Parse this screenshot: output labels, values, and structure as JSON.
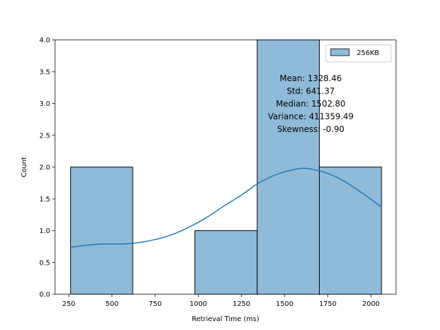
{
  "chart_data": {
    "type": "bar",
    "title": "",
    "xlabel": "Retrieval Time (ms)",
    "ylabel": "Count",
    "xlim": [
      170,
      2145
    ],
    "ylim": [
      0,
      4.0
    ],
    "xticks": [
      250,
      500,
      750,
      1000,
      1250,
      1500,
      1750,
      2000
    ],
    "yticks": [
      0.0,
      0.5,
      1.0,
      1.5,
      2.0,
      2.5,
      3.0,
      3.5,
      4.0
    ],
    "bins": [
      {
        "x0": 260,
        "x1": 620,
        "count": 2
      },
      {
        "x0": 620,
        "x1": 980,
        "count": 0
      },
      {
        "x0": 980,
        "x1": 1341,
        "count": 1
      },
      {
        "x0": 1341,
        "x1": 1701,
        "count": 4
      },
      {
        "x0": 1701,
        "x1": 2061,
        "count": 2
      }
    ],
    "kde": {
      "x": [
        260,
        350,
        450,
        550,
        650,
        750,
        850,
        950,
        1050,
        1150,
        1250,
        1350,
        1450,
        1550,
        1600,
        1650,
        1750,
        1850,
        1950,
        2061
      ],
      "y": [
        0.74,
        0.77,
        0.79,
        0.79,
        0.81,
        0.86,
        0.94,
        1.06,
        1.21,
        1.39,
        1.56,
        1.75,
        1.88,
        1.96,
        1.98,
        1.97,
        1.9,
        1.77,
        1.59,
        1.37
      ]
    },
    "series": [
      {
        "name": "256KB",
        "color": "#1f77b4"
      }
    ],
    "legend": "top-right",
    "grid": false,
    "annotation": [
      "Mean: 1328.46",
      "Std: 641.37",
      "Median: 1502.80",
      "Variance: 411359.49",
      "Skewness: -0.90"
    ]
  },
  "colors": {
    "bar_fill": "#1f77b4",
    "bar_fill_opacity": 0.5,
    "kde_line": "#1f77b4",
    "bar_edge": "#000000"
  }
}
